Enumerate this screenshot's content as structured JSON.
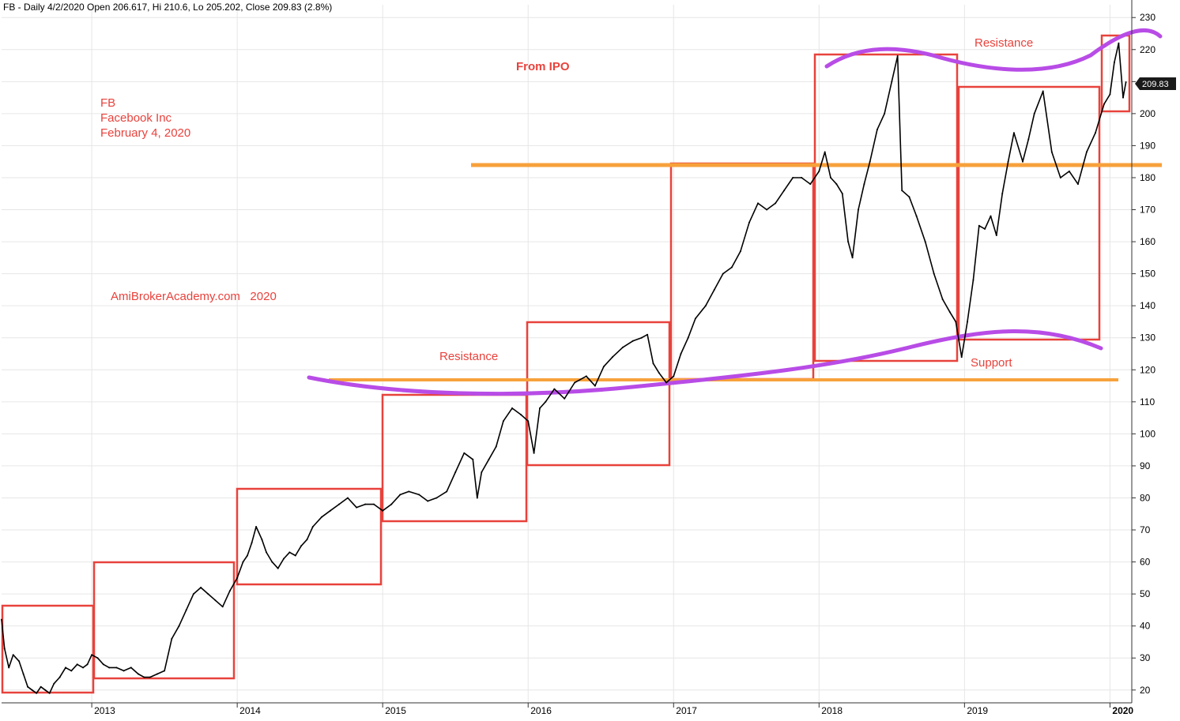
{
  "header": {
    "title": "FB - Daily 4/2/2020 Open 206.617, Hi 210.6, Lo 205.202, Close 209.83 (2.8%)"
  },
  "annotations": {
    "symbol": "FB",
    "company": "Facebook Inc",
    "date": "February 4, 2020",
    "from_ipo": "From IPO",
    "watermark": "AmiBrokerAcademy.com   2020",
    "resistance_label_1": "Resistance",
    "resistance_label_2": "Resistance",
    "support_label": "Support",
    "last_price_tag": "209.83"
  },
  "colors": {
    "price": "#000000",
    "yearly_box": "#e8423c",
    "horizontal_level": "#f7a13b",
    "trend_curve": "#b84ce6",
    "annotation_text": "#e8423c",
    "grid": "#e6e6e6",
    "axis": "#333333"
  },
  "chart_data": {
    "type": "line",
    "title": "FB - Daily 4/2/2020 Open 206.617, Hi 210.6, Lo 205.202, Close 209.83 (2.8%)",
    "x_unit": "year (decimal)",
    "xlim": [
      2012.38,
      2020.15
    ],
    "ylim": [
      16,
      234
    ],
    "x_tick_labels": [
      "2013",
      "2014",
      "2015",
      "2016",
      "2017",
      "2018",
      "2019",
      "2020"
    ],
    "y_ticks": [
      20,
      30,
      40,
      50,
      60,
      70,
      80,
      90,
      100,
      110,
      120,
      130,
      140,
      150,
      160,
      170,
      180,
      190,
      200,
      210,
      220,
      230
    ],
    "grid": true,
    "series": [
      {
        "points": [
          [
            2012.38,
            42
          ],
          [
            2012.4,
            33
          ],
          [
            2012.43,
            27
          ],
          [
            2012.46,
            31
          ],
          [
            2012.5,
            29
          ],
          [
            2012.53,
            25
          ],
          [
            2012.56,
            21
          ],
          [
            2012.59,
            20
          ],
          [
            2012.62,
            19
          ],
          [
            2012.65,
            21
          ],
          [
            2012.68,
            20
          ],
          [
            2012.71,
            19
          ],
          [
            2012.74,
            22
          ],
          [
            2012.78,
            24
          ],
          [
            2012.82,
            27
          ],
          [
            2012.86,
            26
          ],
          [
            2012.9,
            28
          ],
          [
            2012.94,
            27
          ],
          [
            2012.97,
            28
          ],
          [
            2013.0,
            31
          ],
          [
            2013.04,
            30
          ],
          [
            2013.08,
            28
          ],
          [
            2013.12,
            27
          ],
          [
            2013.17,
            27
          ],
          [
            2013.22,
            26
          ],
          [
            2013.27,
            27
          ],
          [
            2013.32,
            25
          ],
          [
            2013.36,
            24
          ],
          [
            2013.4,
            24
          ],
          [
            2013.45,
            25
          ],
          [
            2013.5,
            26
          ],
          [
            2013.55,
            36
          ],
          [
            2013.6,
            40
          ],
          [
            2013.65,
            45
          ],
          [
            2013.7,
            50
          ],
          [
            2013.75,
            52
          ],
          [
            2013.8,
            50
          ],
          [
            2013.85,
            48
          ],
          [
            2013.9,
            46
          ],
          [
            2013.95,
            51
          ],
          [
            2014.0,
            55
          ],
          [
            2014.04,
            60
          ],
          [
            2014.07,
            62
          ],
          [
            2014.1,
            66
          ],
          [
            2014.13,
            71
          ],
          [
            2014.17,
            67
          ],
          [
            2014.2,
            63
          ],
          [
            2014.24,
            60
          ],
          [
            2014.28,
            58
          ],
          [
            2014.32,
            61
          ],
          [
            2014.36,
            63
          ],
          [
            2014.4,
            62
          ],
          [
            2014.44,
            65
          ],
          [
            2014.48,
            67
          ],
          [
            2014.52,
            71
          ],
          [
            2014.58,
            74
          ],
          [
            2014.64,
            76
          ],
          [
            2014.7,
            78
          ],
          [
            2014.76,
            80
          ],
          [
            2014.82,
            77
          ],
          [
            2014.88,
            78
          ],
          [
            2014.94,
            78
          ],
          [
            2015.0,
            76
          ],
          [
            2015.06,
            78
          ],
          [
            2015.12,
            81
          ],
          [
            2015.18,
            82
          ],
          [
            2015.25,
            81
          ],
          [
            2015.31,
            79
          ],
          [
            2015.37,
            80
          ],
          [
            2015.44,
            82
          ],
          [
            2015.5,
            88
          ],
          [
            2015.56,
            94
          ],
          [
            2015.62,
            92
          ],
          [
            2015.65,
            80
          ],
          [
            2015.68,
            88
          ],
          [
            2015.73,
            92
          ],
          [
            2015.78,
            96
          ],
          [
            2015.83,
            104
          ],
          [
            2015.89,
            108
          ],
          [
            2015.95,
            106
          ],
          [
            2016.0,
            104
          ],
          [
            2016.04,
            94
          ],
          [
            2016.08,
            108
          ],
          [
            2016.12,
            110
          ],
          [
            2016.18,
            114
          ],
          [
            2016.25,
            111
          ],
          [
            2016.32,
            116
          ],
          [
            2016.4,
            118
          ],
          [
            2016.46,
            115
          ],
          [
            2016.52,
            121
          ],
          [
            2016.58,
            124
          ],
          [
            2016.65,
            127
          ],
          [
            2016.72,
            129
          ],
          [
            2016.78,
            130
          ],
          [
            2016.82,
            131
          ],
          [
            2016.86,
            122
          ],
          [
            2016.9,
            119
          ],
          [
            2016.95,
            116
          ],
          [
            2017.0,
            118
          ],
          [
            2017.05,
            125
          ],
          [
            2017.1,
            130
          ],
          [
            2017.15,
            136
          ],
          [
            2017.22,
            140
          ],
          [
            2017.28,
            145
          ],
          [
            2017.34,
            150
          ],
          [
            2017.4,
            152
          ],
          [
            2017.46,
            157
          ],
          [
            2017.52,
            166
          ],
          [
            2017.58,
            172
          ],
          [
            2017.64,
            170
          ],
          [
            2017.7,
            172
          ],
          [
            2017.76,
            176
          ],
          [
            2017.82,
            180
          ],
          [
            2017.88,
            180
          ],
          [
            2017.94,
            178
          ],
          [
            2018.0,
            182
          ],
          [
            2018.04,
            188
          ],
          [
            2018.08,
            180
          ],
          [
            2018.12,
            178
          ],
          [
            2018.16,
            175
          ],
          [
            2018.2,
            160
          ],
          [
            2018.23,
            155
          ],
          [
            2018.27,
            170
          ],
          [
            2018.31,
            178
          ],
          [
            2018.35,
            185
          ],
          [
            2018.4,
            195
          ],
          [
            2018.45,
            200
          ],
          [
            2018.5,
            210
          ],
          [
            2018.54,
            218
          ],
          [
            2018.57,
            176
          ],
          [
            2018.62,
            174
          ],
          [
            2018.67,
            168
          ],
          [
            2018.73,
            160
          ],
          [
            2018.79,
            150
          ],
          [
            2018.85,
            142
          ],
          [
            2018.9,
            138
          ],
          [
            2018.94,
            135
          ],
          [
            2018.98,
            124
          ],
          [
            2019.02,
            135
          ],
          [
            2019.06,
            148
          ],
          [
            2019.1,
            165
          ],
          [
            2019.14,
            164
          ],
          [
            2019.18,
            168
          ],
          [
            2019.22,
            162
          ],
          [
            2019.26,
            175
          ],
          [
            2019.3,
            185
          ],
          [
            2019.34,
            194
          ],
          [
            2019.4,
            185
          ],
          [
            2019.44,
            192
          ],
          [
            2019.48,
            200
          ],
          [
            2019.54,
            207
          ],
          [
            2019.6,
            188
          ],
          [
            2019.66,
            180
          ],
          [
            2019.72,
            182
          ],
          [
            2019.78,
            178
          ],
          [
            2019.84,
            188
          ],
          [
            2019.9,
            194
          ],
          [
            2019.96,
            203
          ],
          [
            2020.0,
            206
          ],
          [
            2020.03,
            216
          ],
          [
            2020.06,
            222
          ],
          [
            2020.09,
            205
          ],
          [
            2020.11,
            209.83
          ]
        ]
      }
    ]
  }
}
